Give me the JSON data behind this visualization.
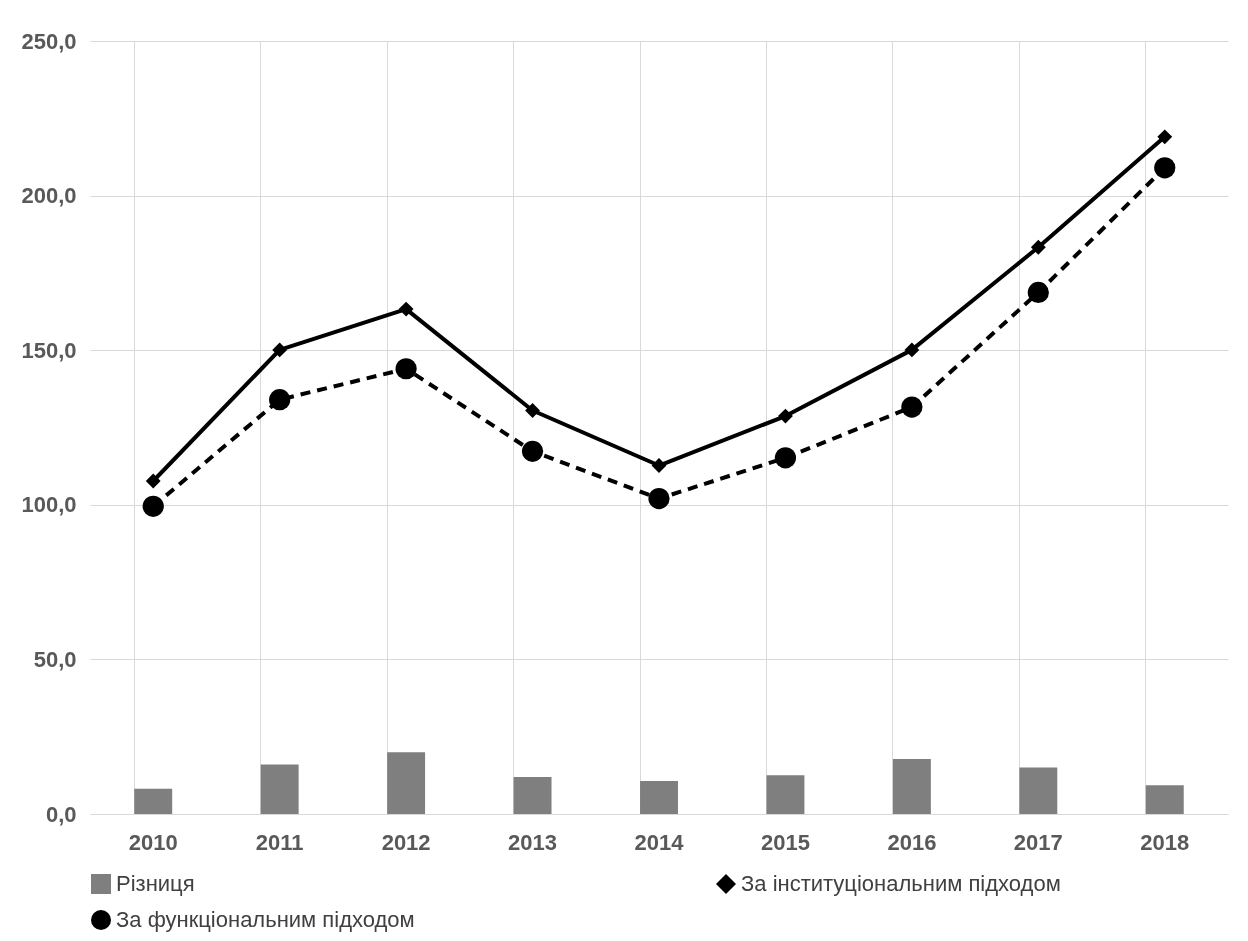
{
  "chart_data": {
    "type": "bar",
    "categories": [
      "2010",
      "2011",
      "2012",
      "2013",
      "2014",
      "2015",
      "2016",
      "2017",
      "2018"
    ],
    "series": [
      {
        "name": "Різниця",
        "color": "#7f7f7f",
        "values": [
          8.2,
          16.0,
          20.0,
          12.0,
          10.7,
          12.5,
          17.8,
          15.0,
          9.3
        ]
      },
      {
        "type": "line",
        "name": "За інституціональним підходом",
        "color": "#000000",
        "marker": "diamond",
        "line_style": "solid",
        "values": [
          107.7,
          150.1,
          163.3,
          130.5,
          112.7,
          128.7,
          150.1,
          183.3,
          219.0
        ]
      },
      {
        "type": "line",
        "name": "За функціональним підходом",
        "color": "#000000",
        "marker": "circle",
        "line_style": "dashed",
        "values": [
          99.5,
          134.0,
          144.0,
          117.3,
          102.0,
          115.2,
          131.6,
          168.7,
          209.0
        ]
      }
    ],
    "ylim": [
      0,
      250
    ],
    "yticks": [
      {
        "value": 0,
        "label": "0,0"
      },
      {
        "value": 50,
        "label": "50,0"
      },
      {
        "value": 100,
        "label": "100,0"
      },
      {
        "value": 150,
        "label": "150,0"
      },
      {
        "value": 200,
        "label": "200,0"
      },
      {
        "value": 250,
        "label": "250,0"
      }
    ],
    "grid": true,
    "legend": "bottom"
  }
}
